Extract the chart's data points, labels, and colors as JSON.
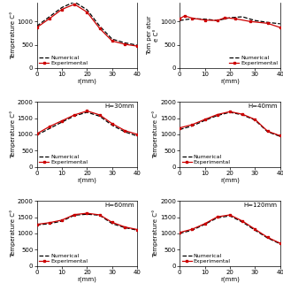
{
  "panels": [
    {
      "label": "",
      "ylim": [
        0,
        1400
      ],
      "yticks": [
        0,
        500,
        1000
      ],
      "xlim": [
        0,
        40
      ],
      "xticks": [
        0,
        10,
        20,
        30,
        40
      ],
      "numerical_x": [
        0,
        5,
        10,
        15,
        20,
        25,
        30,
        35,
        40
      ],
      "numerical_y": [
        900,
        1100,
        1300,
        1420,
        1250,
        900,
        620,
        540,
        490
      ],
      "experimental_x": [
        0,
        5,
        10,
        15,
        20,
        25,
        30,
        35,
        40
      ],
      "experimental_y": [
        870,
        1060,
        1260,
        1370,
        1200,
        850,
        580,
        510,
        470
      ],
      "top_cut": true,
      "legend_loc": "lower left"
    },
    {
      "label": "",
      "ylim": [
        0,
        1400
      ],
      "yticks": [
        0,
        500,
        1000
      ],
      "xlim": [
        0,
        40
      ],
      "xticks": [
        0,
        10,
        20,
        30,
        40
      ],
      "numerical_x": [
        0,
        5,
        10,
        15,
        20,
        25,
        30,
        35,
        40
      ],
      "numerical_y": [
        1020,
        1060,
        1050,
        1020,
        1080,
        1100,
        1020,
        980,
        950
      ],
      "experimental_x": [
        0,
        2,
        5,
        10,
        15,
        18,
        22,
        28,
        35,
        40
      ],
      "experimental_y": [
        1060,
        1120,
        1070,
        1030,
        1020,
        1080,
        1060,
        1000,
        960,
        870
      ],
      "top_cut": true,
      "legend_loc": "lower right"
    },
    {
      "label": "H=30mm",
      "ylim": [
        0,
        2000
      ],
      "yticks": [
        0,
        500,
        1000,
        1500,
        2000
      ],
      "xlim": [
        0,
        40
      ],
      "xticks": [
        0,
        10,
        20,
        30,
        40
      ],
      "numerical_x": [
        0,
        5,
        10,
        15,
        20,
        25,
        30,
        35,
        40
      ],
      "numerical_y": [
        980,
        1180,
        1380,
        1570,
        1680,
        1560,
        1280,
        1080,
        950
      ],
      "experimental_x": [
        0,
        5,
        10,
        15,
        20,
        25,
        30,
        35,
        40
      ],
      "experimental_y": [
        1020,
        1240,
        1420,
        1600,
        1720,
        1600,
        1330,
        1120,
        1000
      ],
      "top_cut": false,
      "legend_loc": "lower left"
    },
    {
      "label": "H=40mm",
      "ylim": [
        0,
        2000
      ],
      "yticks": [
        0,
        500,
        1000,
        1500,
        2000
      ],
      "xlim": [
        0,
        40
      ],
      "xticks": [
        0,
        10,
        20,
        30,
        40
      ],
      "numerical_x": [
        0,
        5,
        10,
        15,
        20,
        25,
        30,
        35,
        40
      ],
      "numerical_y": [
        1150,
        1260,
        1430,
        1580,
        1680,
        1600,
        1440,
        1080,
        940
      ],
      "experimental_x": [
        0,
        5,
        10,
        15,
        20,
        25,
        30,
        35,
        40
      ],
      "experimental_y": [
        1200,
        1300,
        1460,
        1610,
        1700,
        1620,
        1460,
        1100,
        960
      ],
      "top_cut": false,
      "legend_loc": "lower left"
    },
    {
      "label": "H=60mm",
      "ylim": [
        0,
        2000
      ],
      "yticks": [
        0,
        500,
        1000,
        1500,
        2000
      ],
      "xlim": [
        0,
        40
      ],
      "xticks": [
        0,
        10,
        20,
        30,
        40
      ],
      "numerical_x": [
        0,
        5,
        10,
        15,
        20,
        25,
        30,
        35,
        40
      ],
      "numerical_y": [
        1260,
        1300,
        1380,
        1560,
        1590,
        1560,
        1300,
        1180,
        1100
      ],
      "experimental_x": [
        0,
        5,
        10,
        15,
        20,
        25,
        30,
        35,
        40
      ],
      "experimental_y": [
        1280,
        1330,
        1410,
        1580,
        1620,
        1570,
        1340,
        1200,
        1120
      ],
      "top_cut": false,
      "legend_loc": "lower left"
    },
    {
      "label": "H=120mm",
      "ylim": [
        0,
        2000
      ],
      "yticks": [
        0,
        500,
        1000,
        1500,
        2000
      ],
      "xlim": [
        0,
        40
      ],
      "xticks": [
        0,
        10,
        20,
        30,
        40
      ],
      "numerical_x": [
        0,
        5,
        10,
        15,
        20,
        25,
        30,
        35,
        40
      ],
      "numerical_y": [
        1000,
        1100,
        1280,
        1480,
        1540,
        1350,
        1100,
        860,
        680
      ],
      "experimental_x": [
        0,
        5,
        10,
        15,
        20,
        25,
        30,
        35,
        40
      ],
      "experimental_y": [
        1030,
        1130,
        1300,
        1510,
        1570,
        1380,
        1130,
        880,
        700
      ],
      "top_cut": false,
      "legend_loc": "lower left"
    }
  ],
  "numerical_color": "#000000",
  "experimental_color": "#cc0000",
  "bg_color": "#ffffff",
  "xlabel": "r(mm)",
  "ylabel_top": "Temperature",
  "ylabel": "Temperature C°",
  "marker": "s",
  "line_width": 0.9,
  "font_size": 5,
  "legend_font_size": 4.5,
  "tick_font_size": 5
}
